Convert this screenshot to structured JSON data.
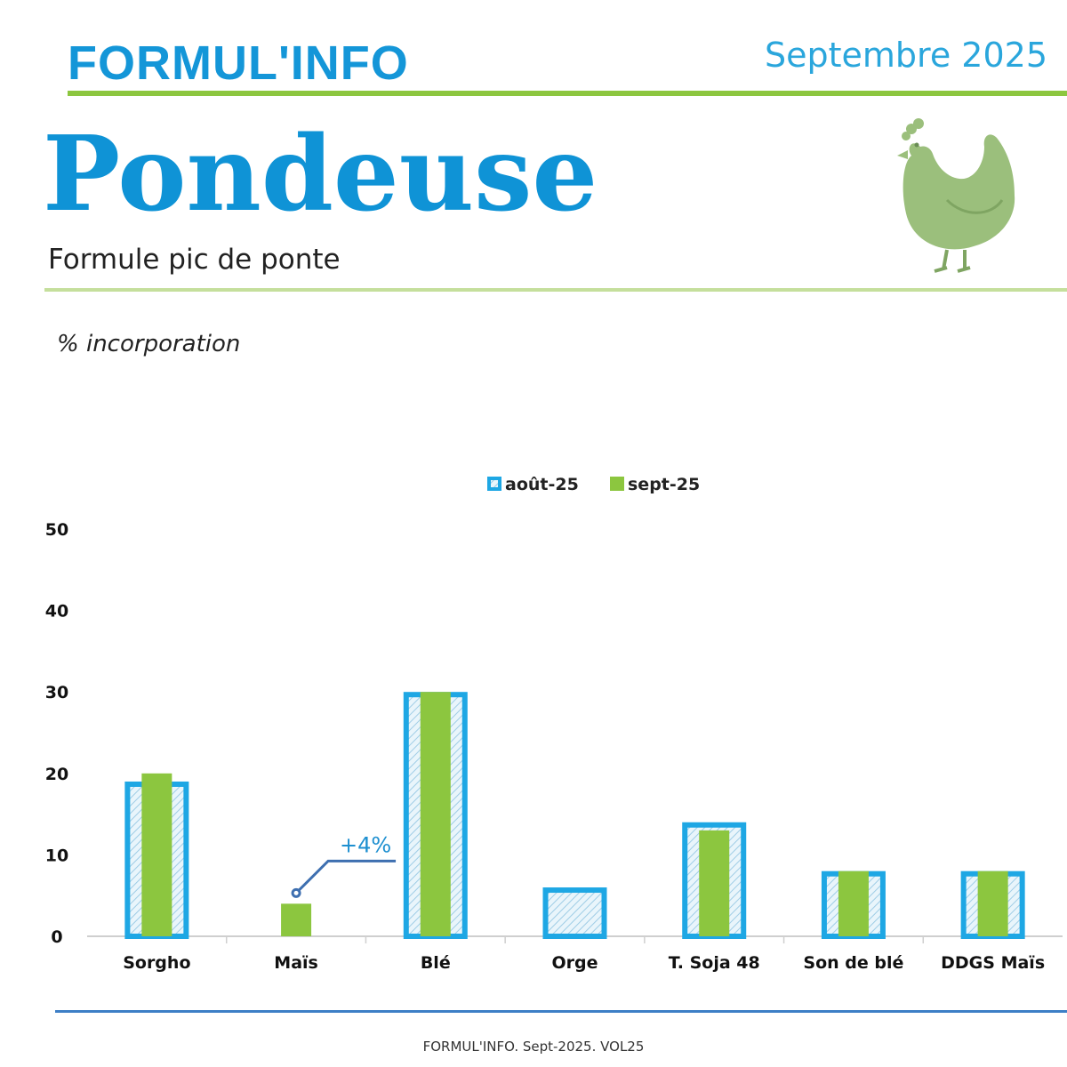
{
  "header": {
    "brand": "FORMUL'INFO",
    "date": "Septembre 2025",
    "title": "Pondeuse",
    "subtitle": "Formule pic de ponte"
  },
  "chart_data": {
    "type": "bar",
    "ylabel": "% incorporation",
    "xlabel": "",
    "ylim": [
      0,
      50
    ],
    "yticks": [
      0,
      10,
      20,
      30,
      40,
      50
    ],
    "grid": false,
    "legend_position": "top-center",
    "categories": [
      "Sorgho",
      "Maïs",
      "Blé",
      "Orge",
      "T. Soja 48",
      "Son de blé",
      "DDGS Maïs"
    ],
    "series": [
      {
        "name": "août-25",
        "color": "#1ea7e4",
        "values": [
          19,
          0,
          30,
          6,
          14,
          8,
          8
        ]
      },
      {
        "name": "sept-25",
        "color": "#8cc63f",
        "values": [
          20,
          4,
          30,
          0,
          13,
          8,
          8
        ]
      }
    ],
    "annotations": [
      {
        "text": "+4%",
        "category": "Maïs",
        "color": "#1d8fd0"
      }
    ]
  },
  "footer": {
    "text": "FORMUL'INFO. Sept-2025. VOL25"
  },
  "icons": {
    "mascot": "hen-icon"
  }
}
